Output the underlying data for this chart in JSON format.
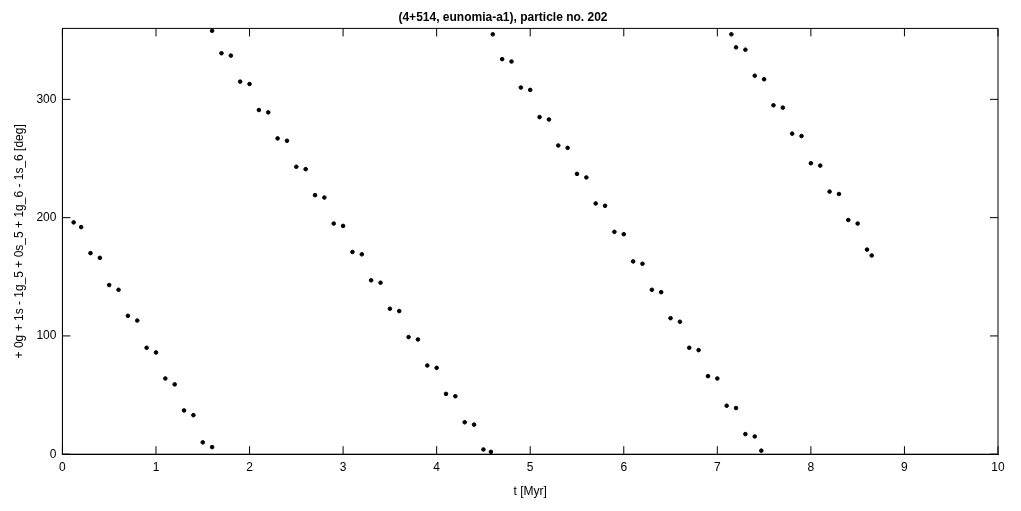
{
  "chart_data": {
    "type": "scatter",
    "title": "(4+514, eunomia-a1), particle no. 202",
    "xlabel": "t [Myr]",
    "ylabel": "+ 0g + 1s - 1g_5 + 0s_5 + 1g_6 - 1s_6 [deg]",
    "xlim": [
      0,
      10
    ],
    "xticks": [
      0,
      1,
      2,
      3,
      4,
      5,
      6,
      7,
      8,
      9,
      10
    ],
    "ylim": [
      0,
      360
    ],
    "yticks": [
      0,
      100,
      200,
      300
    ],
    "grid": false,
    "legend": false,
    "marker": "circle",
    "series": [
      {
        "color": "#000000",
        "x": [
          0.12,
          0.2,
          0.3,
          0.4,
          0.5,
          0.6,
          0.7,
          0.8,
          0.9,
          1.0,
          1.1,
          1.2,
          1.3,
          1.4,
          1.5,
          1.6,
          1.6,
          1.7,
          1.8,
          1.9,
          2.0,
          2.1,
          2.2,
          2.3,
          2.4,
          2.5,
          2.6,
          2.7,
          2.8,
          2.9,
          3.0,
          3.1,
          3.2,
          3.3,
          3.4,
          3.5,
          3.6,
          3.7,
          3.8,
          3.9,
          4.0,
          4.1,
          4.2,
          4.3,
          4.4,
          4.5,
          4.58,
          4.6,
          4.7,
          4.8,
          4.9,
          5.0,
          5.1,
          5.2,
          5.3,
          5.4,
          5.5,
          5.6,
          5.7,
          5.8,
          5.9,
          6.0,
          6.1,
          6.2,
          6.3,
          6.4,
          6.5,
          6.6,
          6.7,
          6.8,
          6.9,
          7.0,
          7.1,
          7.2,
          7.3,
          7.4,
          7.47,
          7.15,
          7.2,
          7.3,
          7.4,
          7.5,
          7.6,
          7.7,
          7.8,
          7.9,
          8.0,
          8.1,
          8.2,
          8.3,
          8.4,
          8.5,
          8.6,
          8.65
        ],
        "values": [
          196,
          192,
          170,
          166,
          143,
          139,
          117,
          113,
          90,
          86,
          64,
          59,
          37,
          33,
          10,
          6,
          358,
          339,
          337,
          315,
          313,
          291,
          289,
          267,
          265,
          243,
          241,
          219,
          217,
          195,
          193,
          171,
          169,
          147,
          145,
          123,
          121,
          99,
          97,
          75,
          73,
          51,
          49,
          27,
          25,
          4,
          2,
          355,
          334,
          332,
          310,
          308,
          285,
          283,
          261,
          259,
          237,
          234,
          212,
          210,
          188,
          186,
          163,
          161,
          139,
          137,
          115,
          112,
          90,
          88,
          66,
          64,
          41,
          39,
          17,
          15,
          3,
          355,
          344,
          342,
          320,
          317,
          295,
          293,
          271,
          269,
          246,
          244,
          222,
          220,
          198,
          195,
          173,
          168
        ]
      }
    ]
  }
}
